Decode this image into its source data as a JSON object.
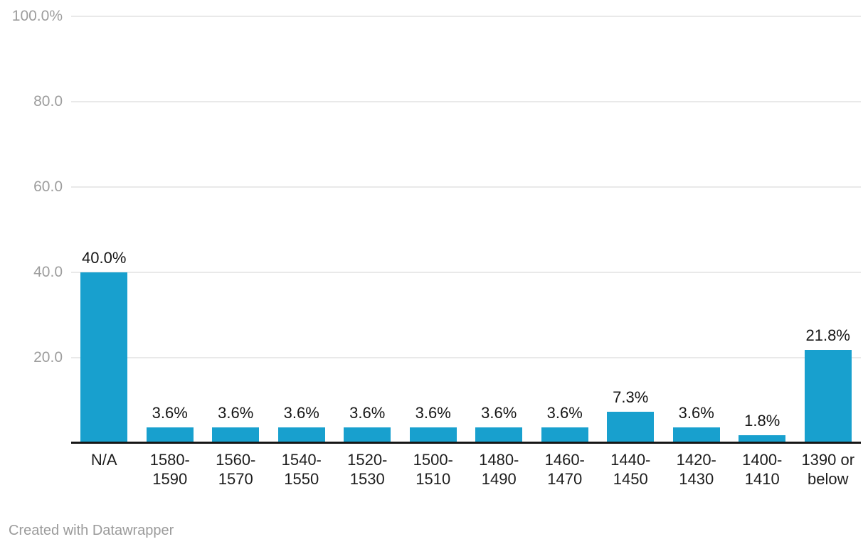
{
  "chart_data": {
    "type": "bar",
    "title": "",
    "xlabel": "",
    "ylabel": "",
    "categories": [
      "N/A",
      "1580-1590",
      "1560-1570",
      "1540-1550",
      "1520-1530",
      "1500-1510",
      "1480-1490",
      "1460-1470",
      "1440-1450",
      "1420-1430",
      "1400-1410",
      "1390 or below"
    ],
    "category_label_lines": [
      [
        "N/A"
      ],
      [
        "1580-",
        "1590"
      ],
      [
        "1560-",
        "1570"
      ],
      [
        "1540-",
        "1550"
      ],
      [
        "1520-",
        "1530"
      ],
      [
        "1500-",
        "1510"
      ],
      [
        "1480-",
        "1490"
      ],
      [
        "1460-",
        "1470"
      ],
      [
        "1440-",
        "1450"
      ],
      [
        "1420-",
        "1430"
      ],
      [
        "1400-",
        "1410"
      ],
      [
        "1390 or",
        "below"
      ]
    ],
    "values": [
      40.0,
      3.6,
      3.6,
      3.6,
      3.6,
      3.6,
      3.6,
      3.6,
      7.3,
      3.6,
      1.8,
      21.8
    ],
    "value_labels": [
      "40.0%",
      "3.6%",
      "3.6%",
      "3.6%",
      "3.6%",
      "3.6%",
      "3.6%",
      "3.6%",
      "7.3%",
      "3.6%",
      "1.8%",
      "21.8%"
    ],
    "ylim": [
      0,
      100
    ],
    "y_ticks": [
      {
        "value": 100,
        "label": "100.0%"
      },
      {
        "value": 80,
        "label": "80.0"
      },
      {
        "value": 60,
        "label": "60.0"
      },
      {
        "value": 40,
        "label": "40.0"
      },
      {
        "value": 20,
        "label": "20.0"
      }
    ],
    "grid": "horizontal gridlines on, baseline at zero",
    "legend": "none",
    "colors": {
      "bar": "#18a0ce",
      "background": "#ffffff",
      "gridline": "#e9e9e9",
      "baseline": "#161616",
      "y_tick_text": "#9d9d9d",
      "category_text": "#1d1d1d",
      "value_label_text": "#161616",
      "credit_text": "#9b9b9b"
    }
  },
  "footer": {
    "credit": "Created with Datawrapper"
  }
}
